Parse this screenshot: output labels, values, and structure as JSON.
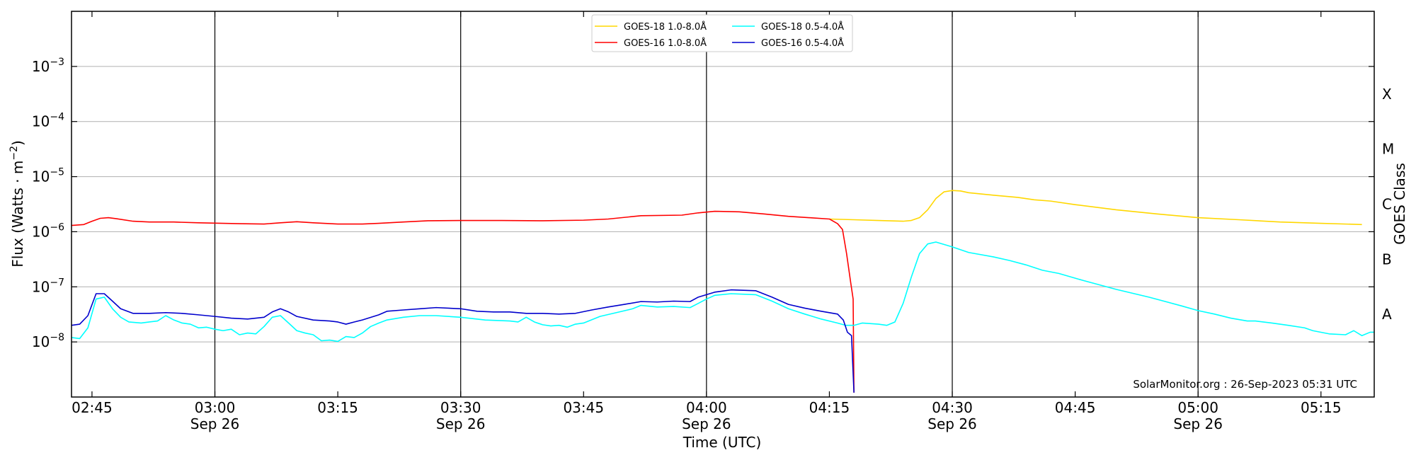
{
  "chart_data": {
    "type": "line",
    "xlabel": "Time (UTC)",
    "ylabel_main": "Flux (Watts",
    "ylabel_unit": "m",
    "ylabel_exp": "−2",
    "right_label": "GOES Class",
    "credit": "SolarMonitor.org : 26-Sep-2023 05:31 UTC",
    "x_range_minutes": [
      162.5,
      321.5
    ],
    "y_log_range": [
      -9,
      -2
    ],
    "grid": "horizontal",
    "legend_position": "top-center",
    "x_ticks": [
      {
        "t": 165,
        "label": "02:45",
        "date": ""
      },
      {
        "t": 180,
        "label": "03:00",
        "date": "Sep 26"
      },
      {
        "t": 195,
        "label": "03:15",
        "date": ""
      },
      {
        "t": 210,
        "label": "03:30",
        "date": "Sep 26"
      },
      {
        "t": 225,
        "label": "03:45",
        "date": ""
      },
      {
        "t": 240,
        "label": "04:00",
        "date": "Sep 26"
      },
      {
        "t": 255,
        "label": "04:15",
        "date": ""
      },
      {
        "t": 270,
        "label": "04:30",
        "date": "Sep 26"
      },
      {
        "t": 285,
        "label": "04:45",
        "date": ""
      },
      {
        "t": 300,
        "label": "05:00",
        "date": "Sep 26"
      },
      {
        "t": 315,
        "label": "05:15",
        "date": ""
      }
    ],
    "y_ticks": [
      {
        "exp": -8,
        "base": "10",
        "sup": "−8"
      },
      {
        "exp": -7,
        "base": "10",
        "sup": "−7"
      },
      {
        "exp": -6,
        "base": "10",
        "sup": "−6"
      },
      {
        "exp": -5,
        "base": "10",
        "sup": "−5"
      },
      {
        "exp": -4,
        "base": "10",
        "sup": "−4"
      },
      {
        "exp": -3,
        "base": "10",
        "sup": "−3"
      }
    ],
    "vlines": [
      180,
      210,
      240,
      270,
      300
    ],
    "goes_classes": [
      {
        "label": "A",
        "exp": -7.5
      },
      {
        "label": "B",
        "exp": -6.5
      },
      {
        "label": "C",
        "exp": -5.5
      },
      {
        "label": "M",
        "exp": -4.5
      },
      {
        "label": "X",
        "exp": -3.5
      }
    ],
    "series": [
      {
        "name": "GOES-18 1.0-8.0Å",
        "color": "#ffd700",
        "points": [
          [
            255,
            1.7e-06
          ],
          [
            258,
            1.65e-06
          ],
          [
            261,
            1.6e-06
          ],
          [
            264,
            1.55e-06
          ],
          [
            265,
            1.6e-06
          ],
          [
            266,
            1.8e-06
          ],
          [
            267,
            2.5e-06
          ],
          [
            268,
            4e-06
          ],
          [
            269,
            5.3e-06
          ],
          [
            270,
            5.6e-06
          ],
          [
            271,
            5.5e-06
          ],
          [
            272,
            5.1e-06
          ],
          [
            275,
            4.6e-06
          ],
          [
            278,
            4.2e-06
          ],
          [
            280,
            3.8e-06
          ],
          [
            282,
            3.6e-06
          ],
          [
            285,
            3.1e-06
          ],
          [
            290,
            2.5e-06
          ],
          [
            295,
            2.1e-06
          ],
          [
            300,
            1.8e-06
          ],
          [
            305,
            1.65e-06
          ],
          [
            310,
            1.5e-06
          ],
          [
            315,
            1.42e-06
          ],
          [
            320,
            1.35e-06
          ]
        ]
      },
      {
        "name": "GOES-16 1.0-8.0Å",
        "color": "#ff0000",
        "points": [
          [
            162.5,
            1.3e-06
          ],
          [
            164,
            1.35e-06
          ],
          [
            165,
            1.55e-06
          ],
          [
            166,
            1.75e-06
          ],
          [
            167,
            1.8e-06
          ],
          [
            168,
            1.72e-06
          ],
          [
            170,
            1.55e-06
          ],
          [
            172,
            1.5e-06
          ],
          [
            175,
            1.5e-06
          ],
          [
            178,
            1.45e-06
          ],
          [
            180,
            1.43e-06
          ],
          [
            183,
            1.4e-06
          ],
          [
            186,
            1.38e-06
          ],
          [
            188,
            1.45e-06
          ],
          [
            190,
            1.52e-06
          ],
          [
            192,
            1.45e-06
          ],
          [
            195,
            1.38e-06
          ],
          [
            198,
            1.38e-06
          ],
          [
            200,
            1.42e-06
          ],
          [
            203,
            1.5e-06
          ],
          [
            206,
            1.58e-06
          ],
          [
            210,
            1.6e-06
          ],
          [
            215,
            1.6e-06
          ],
          [
            220,
            1.58e-06
          ],
          [
            225,
            1.62e-06
          ],
          [
            228,
            1.7e-06
          ],
          [
            232,
            1.95e-06
          ],
          [
            237,
            2e-06
          ],
          [
            239,
            2.2e-06
          ],
          [
            241,
            2.35e-06
          ],
          [
            244,
            2.3e-06
          ],
          [
            247,
            2.1e-06
          ],
          [
            250,
            1.9e-06
          ],
          [
            253,
            1.78e-06
          ],
          [
            255,
            1.7e-06
          ],
          [
            256,
            1.4e-06
          ],
          [
            256.6,
            1.1e-06
          ],
          [
            257.1,
            4e-07
          ],
          [
            257.6,
            1.2e-07
          ],
          [
            257.9,
            6e-08
          ],
          [
            258.0,
            1.2e-09
          ]
        ]
      },
      {
        "name": "GOES-18 0.5-4.0Å",
        "color": "#00ffff",
        "points": [
          [
            162.5,
            1.2e-08
          ],
          [
            163.5,
            1.15e-08
          ],
          [
            164.5,
            1.8e-08
          ],
          [
            165.5,
            6e-08
          ],
          [
            166.5,
            6.5e-08
          ],
          [
            167.5,
            4e-08
          ],
          [
            168.5,
            2.8e-08
          ],
          [
            169.5,
            2.3e-08
          ],
          [
            171,
            2.2e-08
          ],
          [
            172,
            2.3e-08
          ],
          [
            173,
            2.4e-08
          ],
          [
            174,
            3e-08
          ],
          [
            175,
            2.5e-08
          ],
          [
            176,
            2.2e-08
          ],
          [
            177,
            2.1e-08
          ],
          [
            178,
            1.8e-08
          ],
          [
            179,
            1.85e-08
          ],
          [
            180,
            1.7e-08
          ],
          [
            181,
            1.6e-08
          ],
          [
            182,
            1.7e-08
          ],
          [
            183,
            1.35e-08
          ],
          [
            184,
            1.45e-08
          ],
          [
            185,
            1.4e-08
          ],
          [
            186,
            1.9e-08
          ],
          [
            187,
            2.8e-08
          ],
          [
            188,
            3e-08
          ],
          [
            189,
            2.2e-08
          ],
          [
            190,
            1.6e-08
          ],
          [
            191,
            1.45e-08
          ],
          [
            192,
            1.35e-08
          ],
          [
            193,
            1.05e-08
          ],
          [
            194,
            1.08e-08
          ],
          [
            195,
            1.02e-08
          ],
          [
            196,
            1.25e-08
          ],
          [
            197,
            1.2e-08
          ],
          [
            198,
            1.45e-08
          ],
          [
            199,
            1.9e-08
          ],
          [
            200,
            2.2e-08
          ],
          [
            201,
            2.5e-08
          ],
          [
            203,
            2.8e-08
          ],
          [
            205,
            3e-08
          ],
          [
            207,
            3e-08
          ],
          [
            210,
            2.8e-08
          ],
          [
            213,
            2.5e-08
          ],
          [
            216,
            2.4e-08
          ],
          [
            217,
            2.3e-08
          ],
          [
            218,
            2.8e-08
          ],
          [
            219,
            2.3e-08
          ],
          [
            220,
            2.05e-08
          ],
          [
            221,
            1.95e-08
          ],
          [
            222,
            2e-08
          ],
          [
            223,
            1.85e-08
          ],
          [
            224,
            2.1e-08
          ],
          [
            225,
            2.2e-08
          ],
          [
            227,
            2.9e-08
          ],
          [
            229,
            3.4e-08
          ],
          [
            231,
            4e-08
          ],
          [
            232,
            4.6e-08
          ],
          [
            234,
            4.3e-08
          ],
          [
            236,
            4.4e-08
          ],
          [
            238,
            4.2e-08
          ],
          [
            239,
            5e-08
          ],
          [
            240,
            6e-08
          ],
          [
            241,
            7e-08
          ],
          [
            243,
            7.5e-08
          ],
          [
            246,
            7.2e-08
          ],
          [
            248,
            5.5e-08
          ],
          [
            250,
            4e-08
          ],
          [
            252,
            3.2e-08
          ],
          [
            254,
            2.6e-08
          ],
          [
            256,
            2.2e-08
          ],
          [
            257,
            2e-08
          ],
          [
            258,
            2e-08
          ],
          [
            259,
            2.2e-08
          ],
          [
            261,
            2.1e-08
          ],
          [
            262,
            2e-08
          ],
          [
            263,
            2.3e-08
          ],
          [
            264,
            5e-08
          ],
          [
            265,
            1.5e-07
          ],
          [
            266,
            4e-07
          ],
          [
            267,
            6e-07
          ],
          [
            268,
            6.5e-07
          ],
          [
            270,
            5.3e-07
          ],
          [
            272,
            4.2e-07
          ],
          [
            275,
            3.5e-07
          ],
          [
            277,
            3e-07
          ],
          [
            279,
            2.5e-07
          ],
          [
            281,
            2e-07
          ],
          [
            283,
            1.75e-07
          ],
          [
            286,
            1.3e-07
          ],
          [
            290,
            9e-08
          ],
          [
            294,
            6.5e-08
          ],
          [
            298,
            4.5e-08
          ],
          [
            300,
            3.7e-08
          ],
          [
            302,
            3.2e-08
          ],
          [
            304,
            2.7e-08
          ],
          [
            306,
            2.4e-08
          ],
          [
            307,
            2.4e-08
          ],
          [
            309,
            2.2e-08
          ],
          [
            311,
            2e-08
          ],
          [
            313,
            1.8e-08
          ],
          [
            314,
            1.6e-08
          ],
          [
            316,
            1.4e-08
          ],
          [
            318,
            1.35e-08
          ],
          [
            319,
            1.6e-08
          ],
          [
            320,
            1.3e-08
          ],
          [
            321,
            1.5e-08
          ],
          [
            322,
            1.5e-08
          ]
        ]
      },
      {
        "name": "GOES-16 0.5-4.0Å",
        "color": "#0000cd",
        "points": [
          [
            162.5,
            2e-08
          ],
          [
            163.5,
            2.1e-08
          ],
          [
            164.5,
            3e-08
          ],
          [
            165.5,
            7.5e-08
          ],
          [
            166.5,
            7.5e-08
          ],
          [
            167.5,
            5.5e-08
          ],
          [
            168.5,
            4e-08
          ],
          [
            170,
            3.3e-08
          ],
          [
            172,
            3.3e-08
          ],
          [
            174,
            3.4e-08
          ],
          [
            176,
            3.3e-08
          ],
          [
            178,
            3.1e-08
          ],
          [
            180,
            2.9e-08
          ],
          [
            182,
            2.7e-08
          ],
          [
            184,
            2.6e-08
          ],
          [
            186,
            2.8e-08
          ],
          [
            187,
            3.5e-08
          ],
          [
            188,
            4e-08
          ],
          [
            189,
            3.5e-08
          ],
          [
            190,
            2.9e-08
          ],
          [
            192,
            2.5e-08
          ],
          [
            194,
            2.4e-08
          ],
          [
            195,
            2.3e-08
          ],
          [
            196,
            2.1e-08
          ],
          [
            197,
            2.3e-08
          ],
          [
            198,
            2.5e-08
          ],
          [
            200,
            3.1e-08
          ],
          [
            201,
            3.6e-08
          ],
          [
            203,
            3.8e-08
          ],
          [
            205,
            4e-08
          ],
          [
            207,
            4.2e-08
          ],
          [
            210,
            4e-08
          ],
          [
            212,
            3.6e-08
          ],
          [
            214,
            3.5e-08
          ],
          [
            216,
            3.5e-08
          ],
          [
            218,
            3.3e-08
          ],
          [
            220,
            3.3e-08
          ],
          [
            222,
            3.2e-08
          ],
          [
            224,
            3.3e-08
          ],
          [
            226,
            3.8e-08
          ],
          [
            228,
            4.3e-08
          ],
          [
            230,
            4.8e-08
          ],
          [
            232,
            5.4e-08
          ],
          [
            234,
            5.3e-08
          ],
          [
            236,
            5.5e-08
          ],
          [
            238,
            5.4e-08
          ],
          [
            239,
            6.5e-08
          ],
          [
            241,
            8e-08
          ],
          [
            243,
            8.8e-08
          ],
          [
            246,
            8.5e-08
          ],
          [
            248,
            6.5e-08
          ],
          [
            250,
            4.8e-08
          ],
          [
            252,
            4.1e-08
          ],
          [
            254,
            3.6e-08
          ],
          [
            256,
            3.2e-08
          ],
          [
            256.7,
            2.5e-08
          ],
          [
            257.2,
            1.5e-08
          ],
          [
            257.7,
            1.3e-08
          ],
          [
            258,
            1.2e-09
          ]
        ]
      }
    ]
  }
}
